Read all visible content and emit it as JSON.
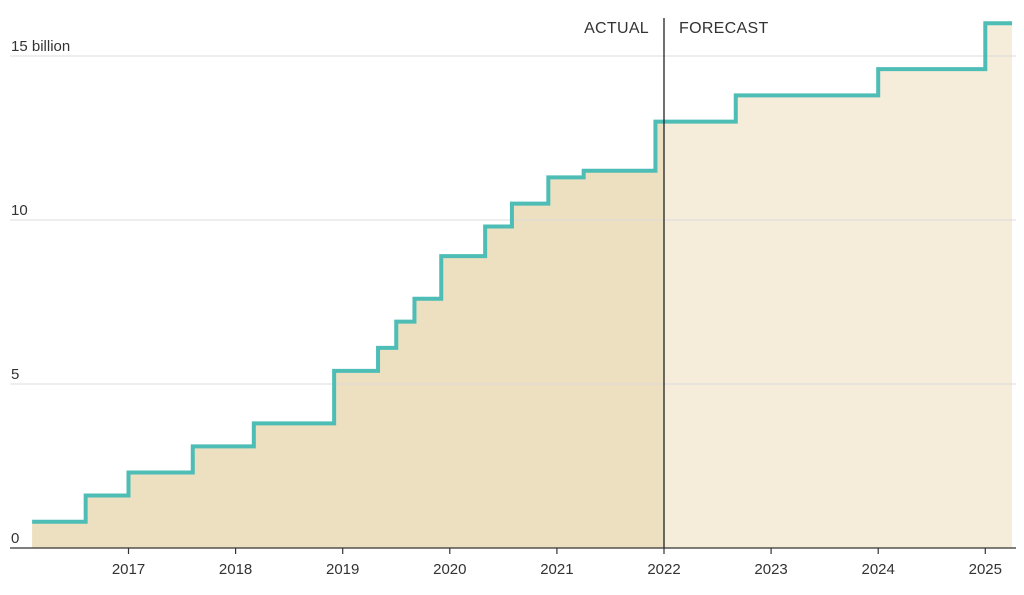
{
  "chart_data": {
    "type": "area",
    "title": "",
    "xlabel": "",
    "ylabel": "",
    "ylim": [
      0,
      15
    ],
    "xlim": [
      2016.1,
      2025.25
    ],
    "y_ticks": [
      {
        "value": 0,
        "label": "0"
      },
      {
        "value": 5,
        "label": "5"
      },
      {
        "value": 10,
        "label": "10"
      },
      {
        "value": 15,
        "label": "15 billion"
      }
    ],
    "x_ticks": [
      {
        "value": 2017,
        "label": "2017"
      },
      {
        "value": 2018,
        "label": "2018"
      },
      {
        "value": 2019,
        "label": "2019"
      },
      {
        "value": 2020,
        "label": "2020"
      },
      {
        "value": 2021,
        "label": "2021"
      },
      {
        "value": 2022,
        "label": "2022"
      },
      {
        "value": 2023,
        "label": "2023"
      },
      {
        "value": 2024,
        "label": "2024"
      },
      {
        "value": 2025,
        "label": "2025"
      }
    ],
    "divider": {
      "x": 2022.0,
      "left_label": "ACTUAL",
      "right_label": "FORECAST"
    },
    "grid": true,
    "colors": {
      "line": "#4dbdb6",
      "actual_fill": "#ede0c0",
      "forecast_fill": "#f5ecd9",
      "grid": "#dddddd",
      "axis": "#333333",
      "divider": "#222222"
    },
    "series": [
      {
        "steps": [
          {
            "x": 2016.1,
            "y": 0.8
          },
          {
            "x": 2016.6,
            "y": 1.6
          },
          {
            "x": 2017.0,
            "y": 2.3
          },
          {
            "x": 2017.6,
            "y": 3.1
          },
          {
            "x": 2018.17,
            "y": 3.8
          },
          {
            "x": 2018.92,
            "y": 5.4
          },
          {
            "x": 2019.33,
            "y": 6.1
          },
          {
            "x": 2019.5,
            "y": 6.9
          },
          {
            "x": 2019.67,
            "y": 7.6
          },
          {
            "x": 2019.92,
            "y": 8.9
          },
          {
            "x": 2020.33,
            "y": 9.8
          },
          {
            "x": 2020.58,
            "y": 10.5
          },
          {
            "x": 2020.92,
            "y": 11.3
          },
          {
            "x": 2021.25,
            "y": 11.5
          },
          {
            "x": 2021.92,
            "y": 13.0
          },
          {
            "x": 2022.67,
            "y": 13.8
          },
          {
            "x": 2024.0,
            "y": 14.6
          },
          {
            "x": 2025.0,
            "y": 16.0
          }
        ],
        "end_x": 2025.25
      }
    ]
  }
}
